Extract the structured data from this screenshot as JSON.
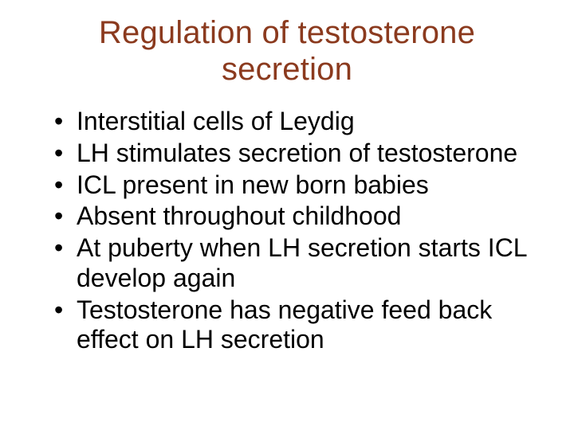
{
  "title_color": "#8b3a1e",
  "body_color": "#000000",
  "background_color": "#ffffff",
  "title_fontsize": 40,
  "body_fontsize": 32,
  "title": "Regulation of testosterone secretion",
  "bullets": [
    "Interstitial cells of Leydig",
    "LH stimulates secretion of testosterone",
    "ICL present in new born babies",
    "Absent throughout childhood",
    "At puberty when LH secretion starts ICL develop again",
    "Testosterone has negative feed back effect on LH secretion"
  ]
}
